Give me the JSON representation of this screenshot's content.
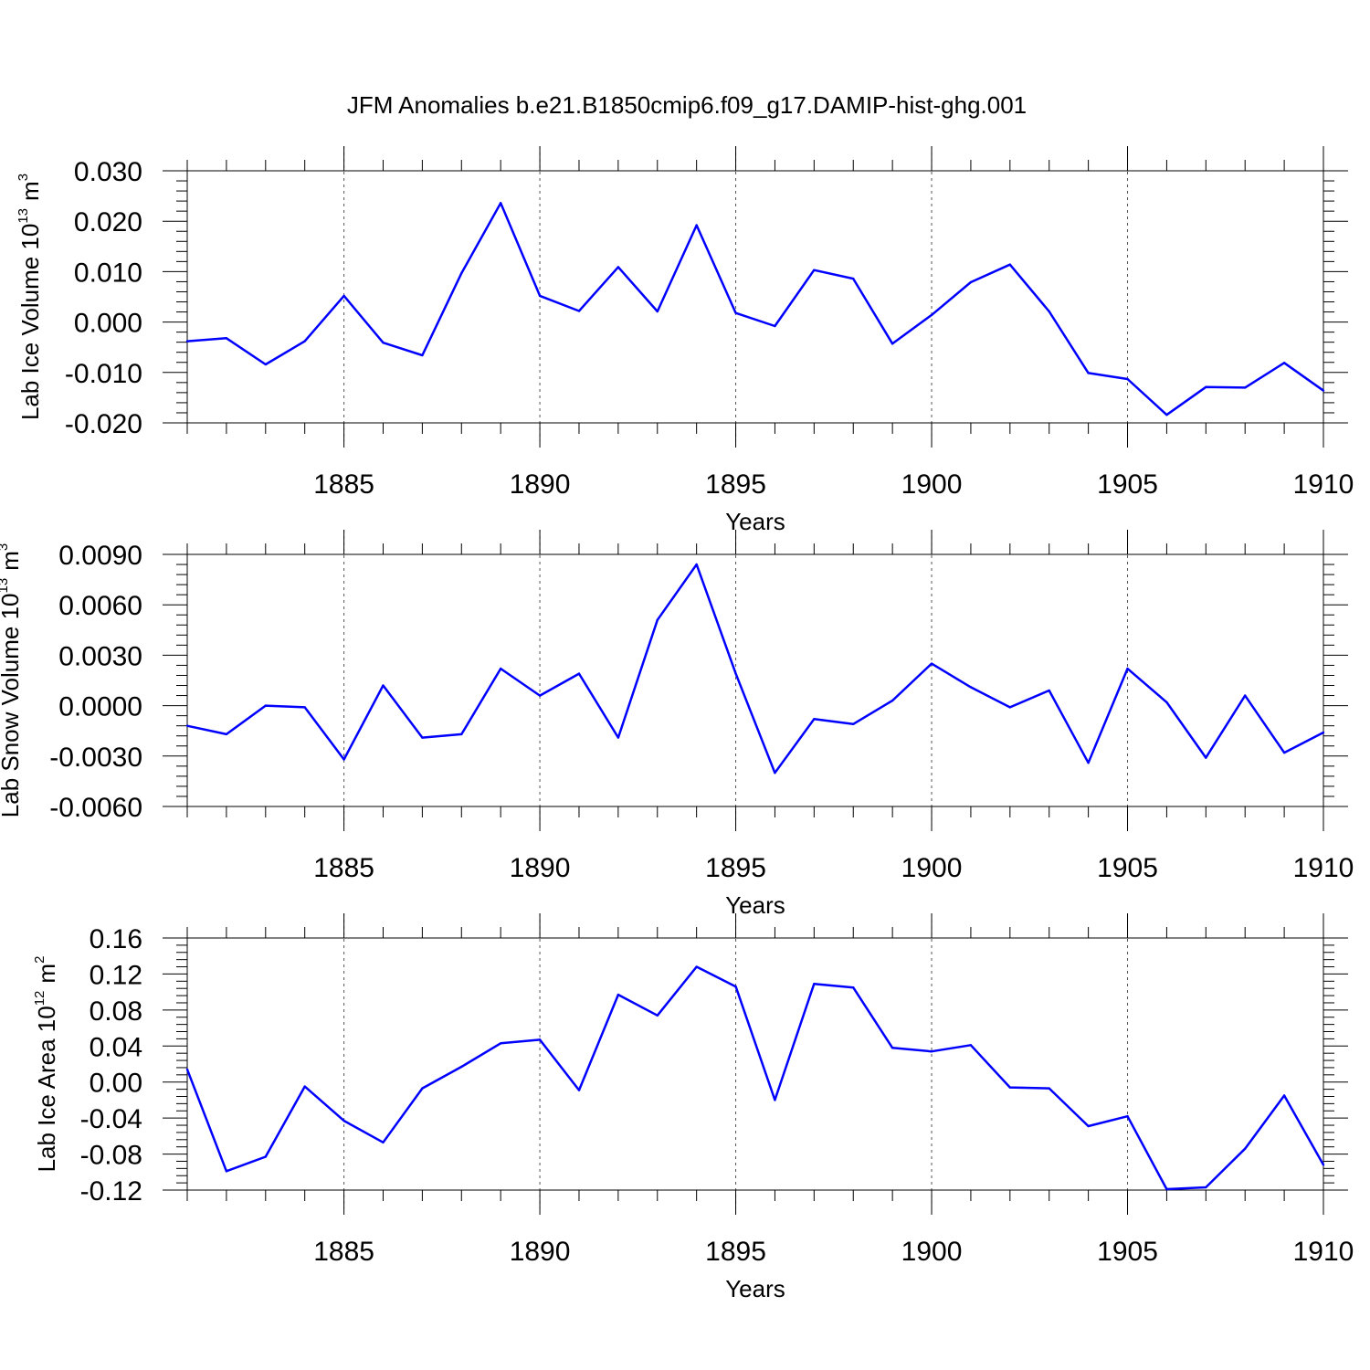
{
  "title": "JFM Anomalies b.e21.B1850cmip6.f09_g17.DAMIP-hist-ghg.001",
  "colors": {
    "line": "#0000ff",
    "frame": "#000000",
    "grid": "#555555"
  },
  "chart_data": [
    {
      "type": "line",
      "ylabel_base": "Lab Ice Volume 10",
      "ylabel_exp": "13",
      "ylabel_unit": "m",
      "ylabel_unit_exp": "3",
      "xlabel": "Years",
      "xlim": [
        1881,
        1910
      ],
      "ylim": [
        -0.02,
        0.03
      ],
      "xticks": [
        1885,
        1890,
        1895,
        1900,
        1905,
        1910
      ],
      "yticks": [
        -0.02,
        -0.01,
        0.0,
        0.01,
        0.02,
        0.03
      ],
      "ytick_labels": [
        "-0.020",
        "-0.010",
        "0.000",
        "0.010",
        "0.020",
        "0.030"
      ],
      "grid": "vertical dashed at major x ticks",
      "x": [
        1881,
        1882,
        1883,
        1884,
        1885,
        1886,
        1887,
        1888,
        1889,
        1890,
        1891,
        1892,
        1893,
        1894,
        1895,
        1896,
        1897,
        1898,
        1899,
        1900,
        1901,
        1902,
        1903,
        1904,
        1905,
        1906,
        1907,
        1908,
        1909,
        1910
      ],
      "values": [
        -0.0038,
        -0.0032,
        -0.0084,
        -0.0038,
        0.0052,
        -0.0041,
        -0.0066,
        0.0097,
        0.0236,
        0.0052,
        0.0022,
        0.0109,
        0.0021,
        0.0192,
        0.0018,
        -0.0008,
        0.0103,
        0.0086,
        -0.0043,
        0.0014,
        0.0079,
        0.0114,
        0.0021,
        -0.0101,
        -0.0113,
        -0.0184,
        -0.0129,
        -0.013,
        -0.0081,
        -0.0136
      ]
    },
    {
      "type": "line",
      "ylabel_base": "Lab Snow Volume 10",
      "ylabel_exp": "13",
      "ylabel_unit": "m",
      "ylabel_unit_exp": "3",
      "xlabel": "Years",
      "xlim": [
        1881,
        1910
      ],
      "ylim": [
        -0.006,
        0.009
      ],
      "xticks": [
        1885,
        1890,
        1895,
        1900,
        1905,
        1910
      ],
      "yticks": [
        -0.006,
        -0.003,
        0.0,
        0.003,
        0.006,
        0.009
      ],
      "ytick_labels": [
        "-0.0060",
        "-0.0030",
        "0.0000",
        "0.0030",
        "0.0060",
        "0.0090"
      ],
      "grid": "vertical dashed at major x ticks",
      "x": [
        1881,
        1882,
        1883,
        1884,
        1885,
        1886,
        1887,
        1888,
        1889,
        1890,
        1891,
        1892,
        1893,
        1894,
        1895,
        1896,
        1897,
        1898,
        1899,
        1900,
        1901,
        1902,
        1903,
        1904,
        1905,
        1906,
        1907,
        1908,
        1909,
        1910
      ],
      "values": [
        -0.0012,
        -0.0017,
        0.0,
        -0.0001,
        -0.0032,
        0.0012,
        -0.0019,
        -0.0017,
        0.0022,
        0.0006,
        0.0019,
        -0.0019,
        0.0051,
        0.0084,
        0.0019,
        -0.004,
        -0.0008,
        -0.0011,
        0.0003,
        0.0025,
        0.0011,
        -0.0001,
        0.0009,
        -0.0034,
        0.0022,
        0.0002,
        -0.0031,
        0.0006,
        -0.0028,
        -0.0016
      ]
    },
    {
      "type": "line",
      "ylabel_base": "Lab Ice Area 10",
      "ylabel_exp": "12",
      "ylabel_unit": "m",
      "ylabel_unit_exp": "2",
      "xlabel": "Years",
      "xlim": [
        1881,
        1910
      ],
      "ylim": [
        -0.12,
        0.16
      ],
      "xticks": [
        1885,
        1890,
        1895,
        1900,
        1905,
        1910
      ],
      "yticks": [
        -0.12,
        -0.08,
        -0.04,
        0.0,
        0.04,
        0.08,
        0.12,
        0.16
      ],
      "ytick_labels": [
        "-0.12",
        "-0.08",
        "-0.04",
        "0.00",
        "0.04",
        "0.08",
        "0.12",
        "0.16"
      ],
      "grid": "vertical dashed at major x ticks",
      "x": [
        1881,
        1882,
        1883,
        1884,
        1885,
        1886,
        1887,
        1888,
        1889,
        1890,
        1891,
        1892,
        1893,
        1894,
        1895,
        1896,
        1897,
        1898,
        1899,
        1900,
        1901,
        1902,
        1903,
        1904,
        1905,
        1906,
        1907,
        1908,
        1909,
        1910
      ],
      "values": [
        0.014,
        -0.099,
        -0.083,
        -0.005,
        -0.043,
        -0.067,
        -0.007,
        0.017,
        0.043,
        0.047,
        -0.009,
        0.097,
        0.074,
        0.128,
        0.106,
        -0.02,
        0.109,
        0.105,
        0.038,
        0.034,
        0.041,
        -0.006,
        -0.007,
        -0.049,
        -0.038,
        -0.119,
        -0.117,
        -0.074,
        -0.015,
        -0.092
      ]
    }
  ]
}
